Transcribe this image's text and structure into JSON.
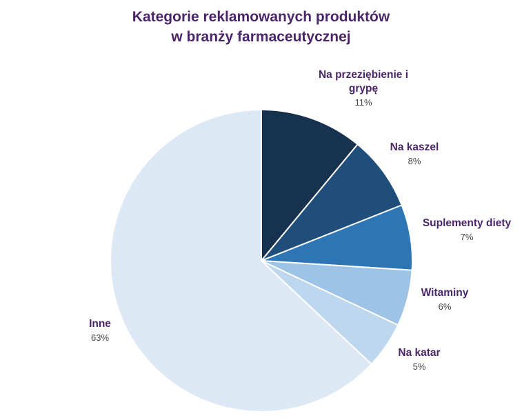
{
  "chart_data": {
    "type": "pie",
    "title_lines": [
      "Kategorie reklamowanych produktów",
      "w branży farmaceutycznej"
    ],
    "slices": [
      {
        "name_lines": [
          "Na przeziębienie i",
          "grypę"
        ],
        "value": 11,
        "pct_label": "11%",
        "color": "#17324f"
      },
      {
        "name_lines": [
          "Na kaszel"
        ],
        "value": 8,
        "pct_label": "8%",
        "color": "#1f4e7a"
      },
      {
        "name_lines": [
          "Suplementy diety"
        ],
        "value": 7,
        "pct_label": "7%",
        "color": "#2e75b6"
      },
      {
        "name_lines": [
          "Witaminy"
        ],
        "value": 6,
        "pct_label": "6%",
        "color": "#9dc3e6"
      },
      {
        "name_lines": [
          "Na katar"
        ],
        "value": 5,
        "pct_label": "5%",
        "color": "#bdd7ee"
      },
      {
        "name_lines": [
          "Inne"
        ],
        "value": 63,
        "pct_label": "63%",
        "color": "#dde8f5"
      }
    ],
    "legend": "none",
    "start": "top, clockwise"
  }
}
